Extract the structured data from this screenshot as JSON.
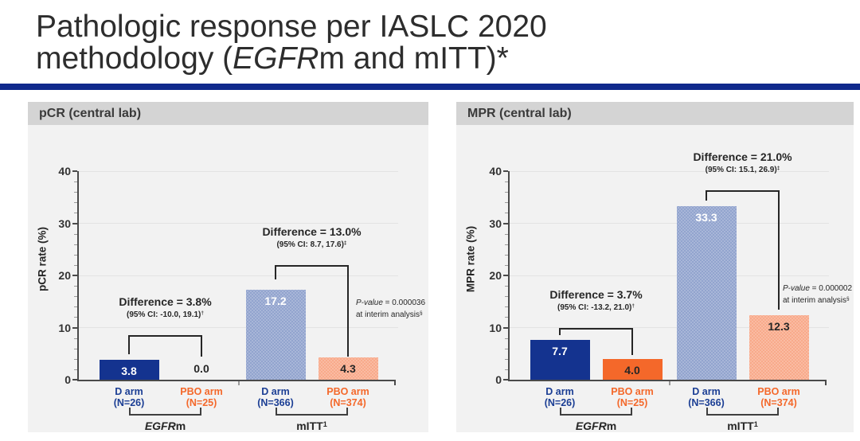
{
  "title": {
    "line1": "Pathologic response per IASLC 2020",
    "line2_pre": "methodology (",
    "line2_italic": "EGFR",
    "line2_post": "m and mITT)*"
  },
  "colors": {
    "divider": "#10298c",
    "navy_bar": "#14338f",
    "orange_bar": "#f4682a",
    "lightblue_bar": "#92a4ce",
    "salmon_bar": "#f8aa8b",
    "navy_text": "#1b3e94",
    "orange_text": "#f4682a",
    "panel_header_bg": "#d4d4d4",
    "panel_body_bg": "#f2f2f2",
    "grid": "#e3e3e3",
    "axis": "#4a4a4a",
    "bracket": "#262626",
    "text_dark": "#262626"
  },
  "chart_data": [
    {
      "type": "bar",
      "panel_title": "pCR (central lab)",
      "ylabel": "pCR rate (%)",
      "ylim": [
        0,
        40
      ],
      "ytick_step": 10,
      "grid": true,
      "categories": [
        "D arm (N=26)",
        "PBO arm (N=25)",
        "D arm (N=366)",
        "PBO arm (N=374)"
      ],
      "values": [
        3.8,
        0.0,
        17.2,
        4.3
      ],
      "bars": [
        {
          "label1": "D arm",
          "label2": "(N=26)",
          "value": 3.8,
          "value_label": "3.8",
          "fill": "navy",
          "hatched": false,
          "label_color": "#ffffff",
          "text_color": "navy"
        },
        {
          "label1": "PBO arm",
          "label2": "(N=25)",
          "value": 0.0,
          "value_label": "0.0",
          "fill": "none",
          "hatched": false,
          "label_color": "#262626",
          "text_color": "orange"
        },
        {
          "label1": "D arm",
          "label2": "(N=366)",
          "value": 17.2,
          "value_label": "17.2",
          "fill": "lightblue",
          "hatched": true,
          "label_color": "#ffffff",
          "text_color": "navy"
        },
        {
          "label1": "PBO arm",
          "label2": "(N=374)",
          "value": 4.3,
          "value_label": "4.3",
          "fill": "salmon",
          "hatched": true,
          "label_color": "#262626",
          "text_color": "orange"
        }
      ],
      "groups": [
        {
          "from": 0,
          "to": 1,
          "italic": "EGFR",
          "rest": "m",
          "sup": ""
        },
        {
          "from": 2,
          "to": 3,
          "italic": "",
          "rest": "mITT",
          "sup": "1"
        }
      ],
      "comparisons": [
        {
          "from": 0,
          "to": 1,
          "bar_y": 8.5,
          "left_end": 4.9,
          "right_end": 4.4,
          "line1": "Difference = 3.8%",
          "line2": "(95% CI: -10.0, 19.1)",
          "sup": "†"
        },
        {
          "from": 2,
          "to": 3,
          "bar_y": 22.0,
          "left_end": 19.3,
          "right_end": 4.5,
          "line1": "Difference = 13.0%",
          "line2": "(95% CI: 8.7, 17.6)",
          "sup": "‡"
        }
      ],
      "pvalue": {
        "italic": "P-value",
        "rest": " = 0.000036",
        "line2": "at interim analysis",
        "sup": "§",
        "x": 412,
        "y": 245
      }
    },
    {
      "type": "bar",
      "panel_title": "MPR (central lab)",
      "ylabel": "MPR rate (%)",
      "ylim": [
        0,
        40
      ],
      "ytick_step": 10,
      "grid": true,
      "categories": [
        "D arm (N=26)",
        "PBO arm (N=25)",
        "D arm (N=366)",
        "PBO arm (N=374)"
      ],
      "values": [
        7.7,
        4.0,
        33.3,
        12.3
      ],
      "bars": [
        {
          "label1": "D arm",
          "label2": "(N=26)",
          "value": 7.7,
          "value_label": "7.7",
          "fill": "navy",
          "hatched": false,
          "label_color": "#ffffff",
          "text_color": "navy"
        },
        {
          "label1": "PBO arm",
          "label2": "(N=25)",
          "value": 4.0,
          "value_label": "4.0",
          "fill": "orange",
          "hatched": false,
          "label_color": "#262626",
          "text_color": "orange"
        },
        {
          "label1": "D arm",
          "label2": "(N=366)",
          "value": 33.3,
          "value_label": "33.3",
          "fill": "lightblue",
          "hatched": true,
          "label_color": "#ffffff",
          "text_color": "navy"
        },
        {
          "label1": "PBO arm",
          "label2": "(N=374)",
          "value": 12.3,
          "value_label": "12.3",
          "fill": "salmon",
          "hatched": true,
          "label_color": "#262626",
          "text_color": "orange"
        }
      ],
      "groups": [
        {
          "from": 0,
          "to": 1,
          "italic": "EGFR",
          "rest": "m",
          "sup": ""
        },
        {
          "from": 2,
          "to": 3,
          "italic": "",
          "rest": "mITT",
          "sup": "1"
        }
      ],
      "comparisons": [
        {
          "from": 0,
          "to": 1,
          "bar_y": 9.9,
          "left_end": 8.6,
          "right_end": 4.8,
          "line1": "Difference = 3.7%",
          "line2": "(95% CI: -13.2, 21.0)",
          "sup": "†"
        },
        {
          "from": 2,
          "to": 3,
          "bar_y": 36.3,
          "left_end": 34.4,
          "right_end": 13.4,
          "line1": "Difference = 21.0%",
          "line2": "(95% CI: 15.1, 26.9)",
          "sup": "‡"
        }
      ],
      "pvalue": {
        "italic": "P-value",
        "rest": " = 0.000002",
        "line2": "at interim analysis",
        "sup": "§",
        "x": 410,
        "y": 227
      }
    }
  ]
}
